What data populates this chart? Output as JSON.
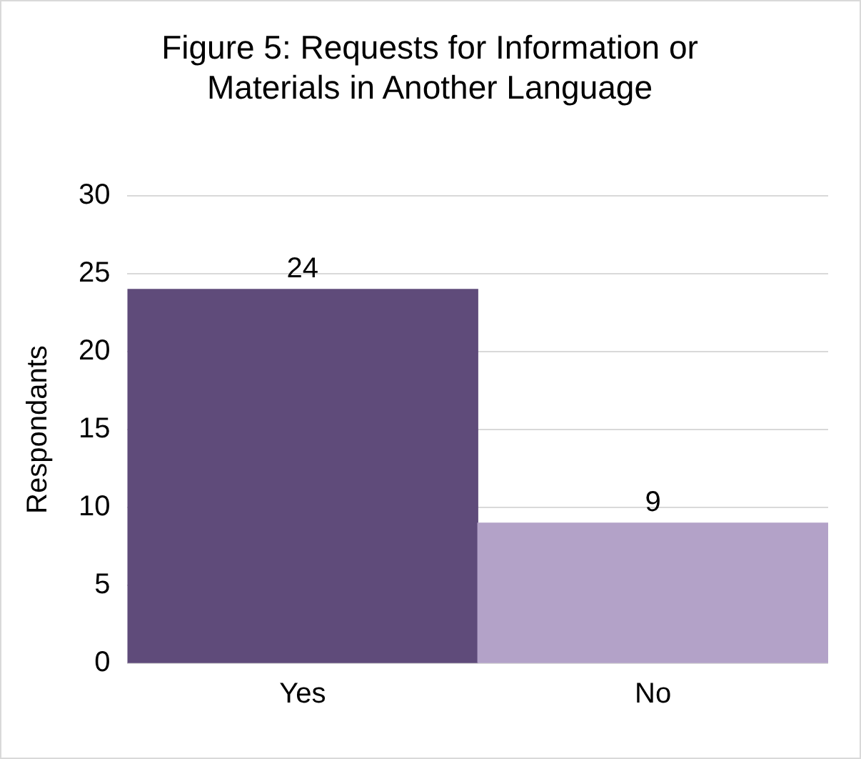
{
  "chart_data": {
    "type": "bar",
    "title": "Figure 5: Requests for Information or Materials in Another Language",
    "ylabel": "Respondants",
    "categories": [
      "Yes",
      "No"
    ],
    "colors": [
      "#5f4b7a",
      "#b3a2c8"
    ],
    "values": [
      24,
      9
    ],
    "ylim": [
      0,
      30
    ],
    "yticks": [
      0,
      5,
      10,
      15,
      20,
      25,
      30
    ],
    "grid": "y",
    "data_labels": true,
    "legend": false
  }
}
